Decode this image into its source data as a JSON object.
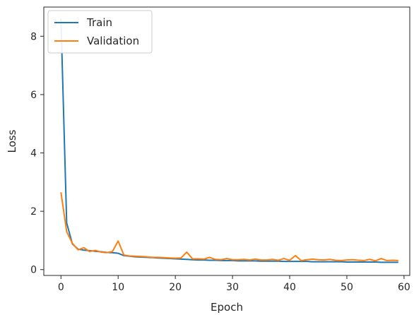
{
  "chart_data": {
    "type": "line",
    "title": "",
    "xlabel": "Epoch",
    "ylabel": "Loss",
    "xlim": [
      -3,
      61
    ],
    "ylim": [
      -0.2,
      9.0
    ],
    "xticks": [
      0,
      10,
      20,
      30,
      40,
      50,
      60
    ],
    "yticks": [
      0,
      2,
      4,
      6,
      8
    ],
    "grid": false,
    "legend_position": "top-left",
    "x": [
      0,
      1,
      2,
      3,
      4,
      5,
      6,
      7,
      8,
      9,
      10,
      11,
      12,
      13,
      14,
      15,
      16,
      17,
      18,
      19,
      20,
      21,
      22,
      23,
      24,
      25,
      26,
      27,
      28,
      29,
      30,
      31,
      32,
      33,
      34,
      35,
      36,
      37,
      38,
      39,
      40,
      41,
      42,
      43,
      44,
      45,
      46,
      47,
      48,
      49,
      50,
      51,
      52,
      53,
      54,
      55,
      56,
      57,
      58,
      59
    ],
    "series": [
      {
        "name": "Train",
        "color": "#1f77b4",
        "values": [
          8.6,
          1.6,
          0.88,
          0.7,
          0.67,
          0.65,
          0.63,
          0.61,
          0.59,
          0.58,
          0.56,
          0.48,
          0.46,
          0.44,
          0.43,
          0.42,
          0.41,
          0.4,
          0.39,
          0.38,
          0.37,
          0.36,
          0.35,
          0.34,
          0.33,
          0.33,
          0.32,
          0.32,
          0.31,
          0.31,
          0.31,
          0.3,
          0.3,
          0.3,
          0.3,
          0.29,
          0.29,
          0.29,
          0.29,
          0.28,
          0.28,
          0.28,
          0.28,
          0.28,
          0.27,
          0.27,
          0.27,
          0.27,
          0.27,
          0.27,
          0.26,
          0.26,
          0.26,
          0.26,
          0.26,
          0.26,
          0.25,
          0.25,
          0.25,
          0.25
        ]
      },
      {
        "name": "Validation",
        "color": "#ff7f0e",
        "values": [
          2.65,
          1.3,
          0.9,
          0.68,
          0.75,
          0.62,
          0.66,
          0.6,
          0.58,
          0.62,
          0.98,
          0.5,
          0.47,
          0.46,
          0.45,
          0.44,
          0.42,
          0.42,
          0.41,
          0.4,
          0.39,
          0.4,
          0.6,
          0.37,
          0.37,
          0.36,
          0.42,
          0.35,
          0.34,
          0.38,
          0.34,
          0.34,
          0.35,
          0.33,
          0.36,
          0.33,
          0.33,
          0.35,
          0.32,
          0.38,
          0.32,
          0.48,
          0.31,
          0.34,
          0.36,
          0.34,
          0.33,
          0.35,
          0.32,
          0.31,
          0.33,
          0.34,
          0.32,
          0.31,
          0.35,
          0.3,
          0.38,
          0.31,
          0.32,
          0.31
        ]
      }
    ]
  }
}
